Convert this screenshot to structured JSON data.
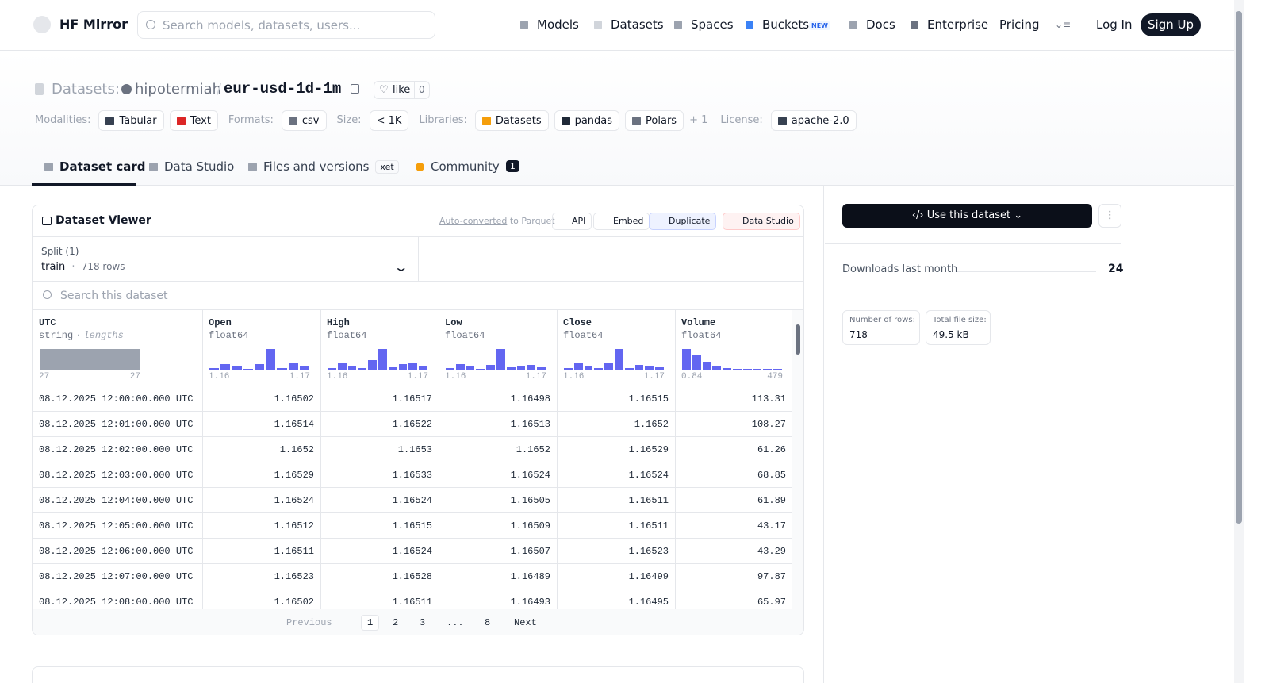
{
  "nav": {
    "brand": "HF Mirror",
    "search_placeholder": "Search models, datasets, users...",
    "links": [
      "Models",
      "Datasets",
      "Spaces",
      "Buckets",
      "Docs",
      "Enterprise",
      "Pricing"
    ],
    "new_badge": "NEW",
    "login": "Log In",
    "signup": "Sign Up"
  },
  "header": {
    "section": "Datasets:",
    "owner": "hipotermiah",
    "separator": "/",
    "name": "eur-usd-1d-1m",
    "like": "like",
    "likes": "0"
  },
  "tags": [
    {
      "label": "Modalities:",
      "items": [
        "Tabular",
        "Text"
      ]
    },
    {
      "label": "Formats:",
      "items": [
        "csv"
      ]
    },
    {
      "label": "Size:",
      "items": [
        "< 1K"
      ]
    },
    {
      "label": "Libraries:",
      "items": [
        "Datasets",
        "pandas",
        "Polars"
      ],
      "more": "+ 1"
    },
    {
      "label": "License:",
      "items": [
        "apache-2.0"
      ]
    }
  ],
  "tabs": [
    {
      "label": "Dataset card"
    },
    {
      "label": "Data Studio"
    },
    {
      "label": "Files and versions",
      "badge": "xet"
    },
    {
      "label": "Community",
      "badge": "1"
    }
  ],
  "viewer": {
    "title": "Dataset Viewer",
    "auto_converted": "Auto-converted",
    "to_parquet": "to Parquet",
    "actions": [
      "API",
      "Embed",
      "Duplicate",
      "Data Studio"
    ],
    "split_label": "Split (1)",
    "split": "train",
    "dot": "·",
    "rows_count": "718 rows",
    "search_placeholder": "Search this dataset",
    "columns": [
      {
        "name": "UTC",
        "type": "string",
        "note": "lengths",
        "min": "27",
        "max": "27",
        "histogram": [
          26
        ]
      },
      {
        "name": "Open",
        "type": "float64",
        "min": "1.16",
        "max": "1.17",
        "histogram": [
          2,
          7,
          5,
          1,
          7,
          26,
          2,
          8,
          4
        ]
      },
      {
        "name": "High",
        "type": "float64",
        "min": "1.16",
        "max": "1.17",
        "histogram": [
          2,
          9,
          5,
          2,
          12,
          26,
          3,
          7,
          8,
          4
        ]
      },
      {
        "name": "Low",
        "type": "float64",
        "min": "1.16",
        "max": "1.17",
        "histogram": [
          2,
          7,
          4,
          1,
          6,
          26,
          3,
          4,
          6,
          3
        ]
      },
      {
        "name": "Close",
        "type": "float64",
        "min": "1.16",
        "max": "1.17",
        "histogram": [
          2,
          8,
          5,
          2,
          8,
          26,
          2,
          6,
          5,
          3
        ]
      },
      {
        "name": "Volume",
        "type": "float64",
        "min": "0.84",
        "max": "479",
        "histogram": [
          26,
          19,
          10,
          4,
          2,
          1,
          1,
          0,
          0,
          1
        ]
      }
    ],
    "rows": [
      [
        "08.12.2025 12:00:00.000 UTC",
        "1.16502",
        "1.16517",
        "1.16498",
        "1.16515",
        "113.31"
      ],
      [
        "08.12.2025 12:01:00.000 UTC",
        "1.16514",
        "1.16522",
        "1.16513",
        "1.1652",
        "108.27"
      ],
      [
        "08.12.2025 12:02:00.000 UTC",
        "1.1652",
        "1.1653",
        "1.1652",
        "1.16529",
        "61.26"
      ],
      [
        "08.12.2025 12:03:00.000 UTC",
        "1.16529",
        "1.16533",
        "1.16524",
        "1.16524",
        "68.85"
      ],
      [
        "08.12.2025 12:04:00.000 UTC",
        "1.16524",
        "1.16524",
        "1.16505",
        "1.16511",
        "61.89"
      ],
      [
        "08.12.2025 12:05:00.000 UTC",
        "1.16512",
        "1.16515",
        "1.16509",
        "1.16511",
        "43.17"
      ],
      [
        "08.12.2025 12:06:00.000 UTC",
        "1.16511",
        "1.16524",
        "1.16507",
        "1.16523",
        "43.29"
      ],
      [
        "08.12.2025 12:07:00.000 UTC",
        "1.16523",
        "1.16528",
        "1.16489",
        "1.16499",
        "97.87"
      ],
      [
        "08.12.2025 12:08:00.000 UTC",
        "1.16502",
        "1.16511",
        "1.16493",
        "1.16495",
        "65.97"
      ]
    ],
    "pagination": {
      "previous": "Previous",
      "pages": [
        "1",
        "2",
        "3",
        "...",
        "8"
      ],
      "next": "Next"
    }
  },
  "sidebar": {
    "use_button": "Use this dataset",
    "downloads_label": "Downloads last month",
    "downloads": "24",
    "stats": [
      {
        "label": "Number of rows:",
        "value": "718"
      },
      {
        "label": "Total file size:",
        "value": "49.5 kB"
      }
    ]
  }
}
